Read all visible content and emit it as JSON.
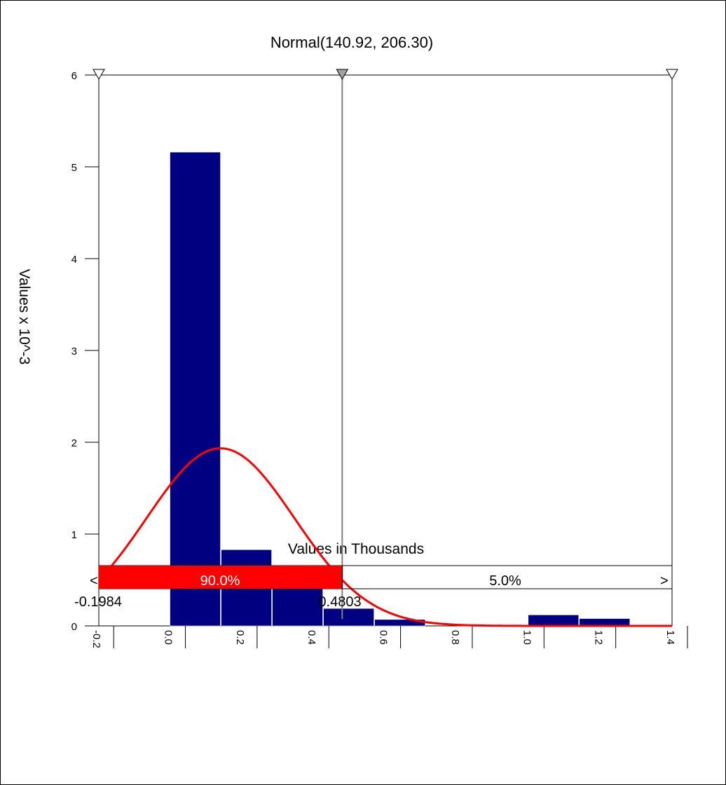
{
  "chart_data": {
    "type": "bar",
    "title": "Normal(140.92, 206.30)",
    "xlabel": "Values in Thousands",
    "ylabel": "Values x 10^-3",
    "xlim": [
      -0.1984,
      1.4
    ],
    "ylim": [
      0,
      6
    ],
    "x_ticks": [
      "-0.2",
      "0.0",
      "0.2",
      "0.4",
      "0.6",
      "0.8",
      "1.0",
      "1.2",
      "1.4"
    ],
    "y_ticks": [
      "0",
      "1",
      "2",
      "3",
      "4",
      "5",
      "6"
    ],
    "bins": [
      {
        "start": 0.0,
        "end": 0.1427,
        "value": 5.16
      },
      {
        "start": 0.1427,
        "end": 0.2854,
        "value": 0.83
      },
      {
        "start": 0.2854,
        "end": 0.4281,
        "value": 0.54
      },
      {
        "start": 0.4281,
        "end": 0.5708,
        "value": 0.19
      },
      {
        "start": 0.5708,
        "end": 0.7135,
        "value": 0.07
      },
      {
        "start": 0.7135,
        "end": 0.8562,
        "value": 0.0
      },
      {
        "start": 0.8562,
        "end": 0.9989,
        "value": 0.0
      },
      {
        "start": 0.9989,
        "end": 1.1416,
        "value": 0.12
      },
      {
        "start": 1.1416,
        "end": 1.2843,
        "value": 0.08
      }
    ],
    "fit_curve": {
      "distribution": "Normal",
      "mean": 0.14092,
      "stdev": 0.2063,
      "color": "#ff0000"
    },
    "bar_color": "#000080",
    "markers": {
      "left": -0.1984,
      "middle": 0.4803,
      "right": 1.4
    },
    "probability_bar": {
      "left_value": "-0.1984",
      "right_value": "0.4803",
      "left_percent": "90.0%",
      "right_percent": "5.0%",
      "left_arrow": "<",
      "right_arrow": ">",
      "fill_color": "#ff0000",
      "fill_fraction": 0.9
    }
  }
}
